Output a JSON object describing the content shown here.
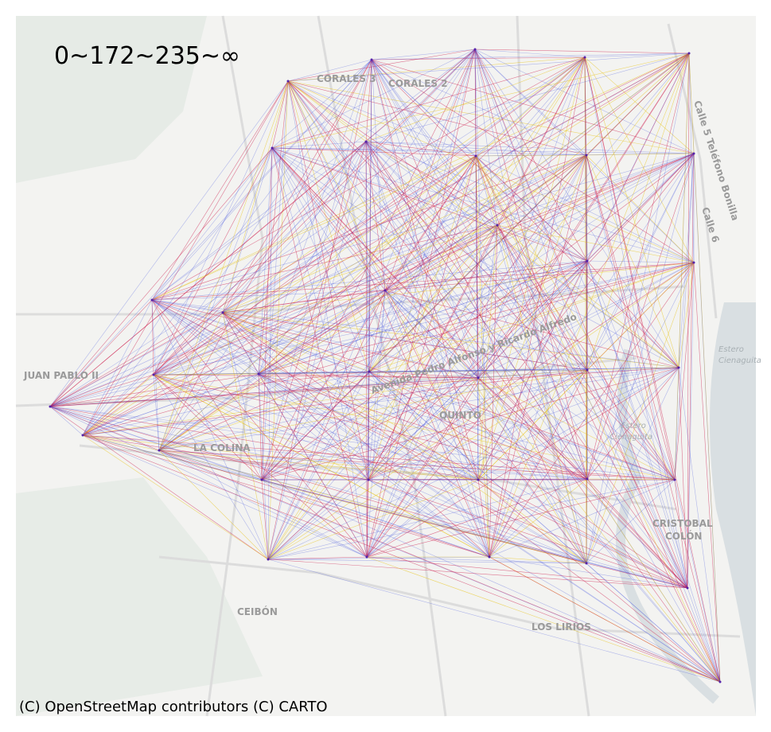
{
  "title": "0~172~235~∞",
  "attribution": "(C) OpenStreetMap contributors (C) CARTO",
  "map_labels": [
    "CORALES 3",
    "CORALES 2",
    "JUAN PABLO II",
    "LA COLINA",
    "QUINTO",
    "CEIBÓN",
    "CRISTOBAL",
    "COLÓN",
    "LOS LIRIOS",
    "Estero",
    "Cienaguita",
    "Estero",
    "Cienaguita",
    "Calle 5 Teléfono Bonilla",
    "Calle 6",
    "Avenida Pedro Alfonso y Ricardo Alfredo"
  ]
}
